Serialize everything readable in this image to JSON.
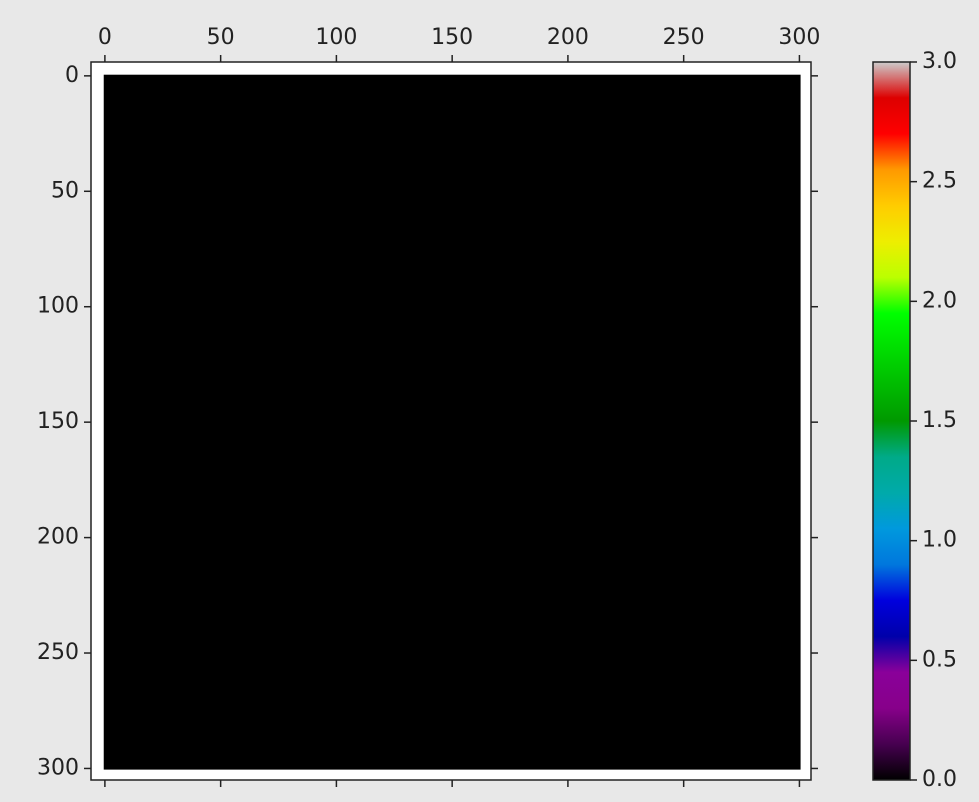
{
  "chart_data": {
    "type": "image",
    "colormap": "nipy_spectral",
    "image": {
      "extent": [
        -0.5,
        300.5,
        300.5,
        -0.5
      ],
      "color": "#000000"
    },
    "xlim": [
      -6,
      305
    ],
    "xticks": [
      0,
      50,
      100,
      150,
      200,
      250,
      300
    ],
    "xaxis_position": "top",
    "ylim": [
      305,
      -6
    ],
    "yticks": [
      0,
      50,
      100,
      150,
      200,
      250,
      300
    ],
    "colorbar": {
      "lim": [
        0,
        3
      ],
      "ticks": [
        {
          "value": 0,
          "label": "0.0"
        },
        {
          "value": 0.5,
          "label": "0.5"
        },
        {
          "value": 1,
          "label": "1.0"
        },
        {
          "value": 1.5,
          "label": "1.5"
        },
        {
          "value": 2,
          "label": "2.0"
        },
        {
          "value": 2.5,
          "label": "2.5"
        },
        {
          "value": 3,
          "label": "3.0"
        }
      ]
    }
  }
}
